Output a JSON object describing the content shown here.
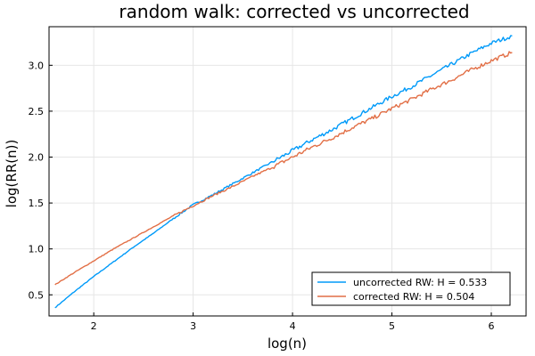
{
  "chart_data": {
    "type": "line",
    "title": "random walk: corrected vs uncorrected",
    "xlabel": "log(n)",
    "ylabel": "log(RR(n))",
    "xlim": [
      1.55,
      6.35
    ],
    "ylim": [
      0.27,
      3.42
    ],
    "xticks": [
      2,
      3,
      4,
      5,
      6
    ],
    "yticks": [
      0.5,
      1.0,
      1.5,
      2.0,
      2.5,
      3.0
    ],
    "ytick_labels": [
      "0.5",
      "1.0",
      "1.5",
      "2.0",
      "2.5",
      "3.0"
    ],
    "grid": true,
    "legend_position": "bottom-right",
    "series": [
      {
        "name": "uncorrected RW: H = 0.533",
        "color": "#009af9",
        "points": [
          [
            1.61,
            0.36
          ],
          [
            1.8,
            0.53
          ],
          [
            2.0,
            0.7
          ],
          [
            2.2,
            0.86
          ],
          [
            2.4,
            1.02
          ],
          [
            2.6,
            1.17
          ],
          [
            2.8,
            1.33
          ],
          [
            3.0,
            1.48
          ],
          [
            3.2,
            1.59
          ],
          [
            3.4,
            1.71
          ],
          [
            3.6,
            1.83
          ],
          [
            3.8,
            1.95
          ],
          [
            4.0,
            2.07
          ],
          [
            4.2,
            2.19
          ],
          [
            4.4,
            2.3
          ],
          [
            4.6,
            2.42
          ],
          [
            4.8,
            2.54
          ],
          [
            5.0,
            2.66
          ],
          [
            5.2,
            2.77
          ],
          [
            5.4,
            2.89
          ],
          [
            5.6,
            3.01
          ],
          [
            5.8,
            3.13
          ],
          [
            6.0,
            3.24
          ],
          [
            6.21,
            3.32
          ]
        ]
      },
      {
        "name": "corrected RW: H = 0.504",
        "color": "#e26f46",
        "points": [
          [
            1.61,
            0.61
          ],
          [
            1.8,
            0.74
          ],
          [
            2.0,
            0.87
          ],
          [
            2.2,
            1.0
          ],
          [
            2.4,
            1.12
          ],
          [
            2.6,
            1.24
          ],
          [
            2.8,
            1.36
          ],
          [
            3.0,
            1.47
          ],
          [
            3.2,
            1.58
          ],
          [
            3.4,
            1.68
          ],
          [
            3.6,
            1.79
          ],
          [
            3.8,
            1.89
          ],
          [
            4.0,
            2.0
          ],
          [
            4.2,
            2.11
          ],
          [
            4.4,
            2.21
          ],
          [
            4.6,
            2.32
          ],
          [
            4.8,
            2.42
          ],
          [
            5.0,
            2.53
          ],
          [
            5.2,
            2.63
          ],
          [
            5.4,
            2.74
          ],
          [
            5.6,
            2.84
          ],
          [
            5.8,
            2.95
          ],
          [
            6.0,
            3.05
          ],
          [
            6.21,
            3.14
          ]
        ]
      }
    ]
  }
}
